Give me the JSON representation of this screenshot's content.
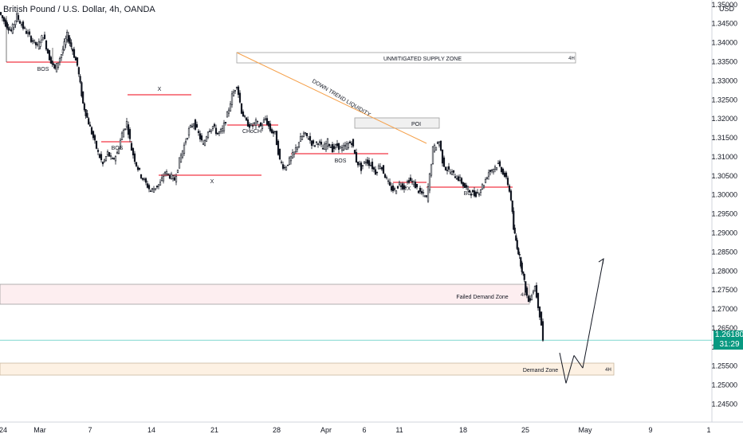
{
  "header": {
    "title": "British Pound / U.S. Dollar, 4h, OANDA"
  },
  "price_badge": {
    "price": "1.26180",
    "countdown": "31:29"
  },
  "currency_label": "USD",
  "colors": {
    "candle": "#131722",
    "bos_line": "#f23645",
    "trend_line": "#f5a04a",
    "last_price_line": "#7fd7cf",
    "badge": "#089981"
  },
  "chart_data": {
    "type": "candlestick",
    "title": "British Pound / U.S. Dollar, 4h, OANDA",
    "y_ticks": [
      "1.35000",
      "1.34500",
      "1.34000",
      "1.33500",
      "1.33000",
      "1.32500",
      "1.32000",
      "1.31500",
      "1.31000",
      "1.30500",
      "1.30000",
      "1.29500",
      "1.29000",
      "1.28500",
      "1.28000",
      "1.27500",
      "1.27000",
      "1.26500",
      "1.26000",
      "1.25500",
      "1.25000",
      "1.24500"
    ],
    "y_range": [
      1.2428,
      1.3508
    ],
    "x_ticks": [
      "24",
      "Mar",
      "7",
      "14",
      "21",
      "28",
      "Apr",
      "6",
      "11",
      "18",
      "25",
      "May",
      "9",
      "1"
    ],
    "last_price": 1.2618,
    "price_path": [
      [
        0,
        1.348
      ],
      [
        8,
        1.345
      ],
      [
        15,
        1.343
      ],
      [
        22,
        1.347
      ],
      [
        30,
        1.344
      ],
      [
        40,
        1.341
      ],
      [
        48,
        1.339
      ],
      [
        55,
        1.342
      ],
      [
        63,
        1.336
      ],
      [
        70,
        1.333
      ],
      [
        78,
        1.337
      ],
      [
        85,
        1.342
      ],
      [
        92,
        1.338
      ],
      [
        98,
        1.334
      ],
      [
        105,
        1.324
      ],
      [
        112,
        1.319
      ],
      [
        118,
        1.315
      ],
      [
        124,
        1.311
      ],
      [
        130,
        1.308
      ],
      [
        136,
        1.311
      ],
      [
        142,
        1.309
      ],
      [
        148,
        1.311
      ],
      [
        154,
        1.316
      ],
      [
        160,
        1.319
      ],
      [
        166,
        1.312
      ],
      [
        172,
        1.308
      ],
      [
        178,
        1.305
      ],
      [
        184,
        1.303
      ],
      [
        190,
        1.301
      ],
      [
        196,
        1.302
      ],
      [
        202,
        1.303
      ],
      [
        208,
        1.306
      ],
      [
        214,
        1.305
      ],
      [
        220,
        1.304
      ],
      [
        226,
        1.309
      ],
      [
        232,
        1.313
      ],
      [
        238,
        1.317
      ],
      [
        244,
        1.319
      ],
      [
        250,
        1.316
      ],
      [
        256,
        1.313
      ],
      [
        262,
        1.317
      ],
      [
        268,
        1.318
      ],
      [
        274,
        1.316
      ],
      [
        280,
        1.317
      ],
      [
        286,
        1.321
      ],
      [
        292,
        1.326
      ],
      [
        298,
        1.329
      ],
      [
        304,
        1.322
      ],
      [
        310,
        1.319
      ],
      [
        316,
        1.318
      ],
      [
        322,
        1.319
      ],
      [
        328,
        1.318
      ],
      [
        334,
        1.32
      ],
      [
        340,
        1.317
      ],
      [
        346,
        1.316
      ],
      [
        352,
        1.309
      ],
      [
        358,
        1.307
      ],
      [
        364,
        1.309
      ],
      [
        370,
        1.311
      ],
      [
        376,
        1.314
      ],
      [
        382,
        1.316
      ],
      [
        388,
        1.315
      ],
      [
        394,
        1.313
      ],
      [
        400,
        1.314
      ],
      [
        406,
        1.312
      ],
      [
        412,
        1.314
      ],
      [
        418,
        1.312
      ],
      [
        424,
        1.313
      ],
      [
        430,
        1.312
      ],
      [
        436,
        1.313
      ],
      [
        442,
        1.314
      ],
      [
        448,
        1.309
      ],
      [
        454,
        1.307
      ],
      [
        460,
        1.309
      ],
      [
        466,
        1.308
      ],
      [
        472,
        1.306
      ],
      [
        478,
        1.308
      ],
      [
        484,
        1.305
      ],
      [
        490,
        1.302
      ],
      [
        496,
        1.301
      ],
      [
        502,
        1.303
      ],
      [
        508,
        1.302
      ],
      [
        514,
        1.304
      ],
      [
        520,
        1.303
      ],
      [
        526,
        1.301
      ],
      [
        532,
        1.3
      ],
      [
        536,
        1.299
      ],
      [
        540,
        1.305
      ],
      [
        544,
        1.312
      ],
      [
        548,
        1.313
      ],
      [
        552,
        1.314
      ],
      [
        556,
        1.309
      ],
      [
        560,
        1.307
      ],
      [
        566,
        1.306
      ],
      [
        572,
        1.305
      ],
      [
        578,
        1.304
      ],
      [
        584,
        1.302
      ],
      [
        590,
        1.301
      ],
      [
        596,
        1.3
      ],
      [
        602,
        1.301
      ],
      [
        608,
        1.303
      ],
      [
        614,
        1.306
      ],
      [
        620,
        1.307
      ],
      [
        626,
        1.308
      ],
      [
        632,
        1.306
      ],
      [
        638,
        1.303
      ],
      [
        642,
        1.299
      ],
      [
        645,
        1.291
      ],
      [
        648,
        1.288
      ],
      [
        651,
        1.285
      ],
      [
        654,
        1.282
      ],
      [
        657,
        1.279
      ],
      [
        660,
        1.275
      ],
      [
        664,
        1.272
      ],
      [
        668,
        1.274
      ],
      [
        672,
        1.276
      ],
      [
        676,
        1.271
      ],
      [
        680,
        1.266
      ],
      [
        682,
        1.2618
      ]
    ],
    "annotations": [
      {
        "kind": "label",
        "text": "BOS"
      },
      {
        "kind": "label",
        "text": "BOS"
      },
      {
        "kind": "label",
        "text": "X"
      },
      {
        "kind": "label",
        "text": "X"
      },
      {
        "kind": "label",
        "text": "CHoCH"
      },
      {
        "kind": "label",
        "text": "BOS"
      },
      {
        "kind": "label",
        "text": "X"
      },
      {
        "kind": "label",
        "text": "BOS"
      },
      {
        "kind": "label",
        "text": "DOWN TREND LIQUIDITY"
      },
      {
        "kind": "zone",
        "text": "UNMITIGATED SUPPLY ZONE",
        "tf": "4H"
      },
      {
        "kind": "zone",
        "text": "POI"
      },
      {
        "kind": "zone",
        "text": "Failed Demand Zone",
        "tf": "4H"
      },
      {
        "kind": "zone",
        "text": "Demand Zone",
        "tf": "4H"
      }
    ],
    "projection": [
      [
        1.2585,
        1.2505
      ],
      [
        1.2505,
        1.2578
      ],
      [
        1.2578,
        1.2545
      ],
      [
        1.2545,
        1.2832
      ]
    ],
    "grid": false,
    "legend": "none"
  }
}
